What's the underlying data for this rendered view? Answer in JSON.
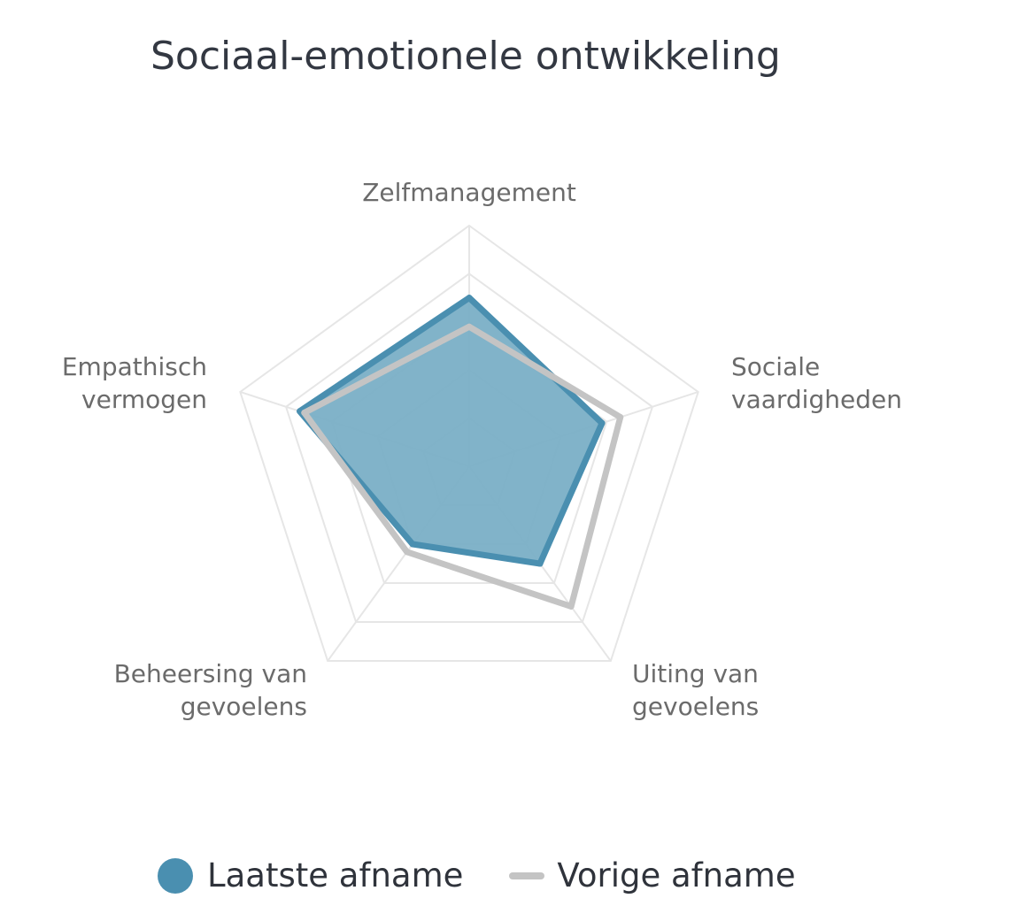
{
  "title": "Sociaal-emotionele ontwikkeling",
  "chart_data": {
    "type": "radar",
    "title": "Sociaal-emotionele ontwikkeling",
    "axes": [
      [
        "Zelfmanagement"
      ],
      [
        "Sociale",
        "vaardigheden"
      ],
      [
        "Uiting van",
        "gevoelens"
      ],
      [
        "Beheersing van",
        "gevoelens"
      ],
      [
        "Empathisch",
        "vermogen"
      ]
    ],
    "range": [
      0,
      5
    ],
    "grid_levels": 5,
    "grid": true,
    "legend_position": "bottom",
    "series": [
      {
        "name": "Laatste afname",
        "values": [
          3.5,
          2.9,
          2.5,
          2.0,
          3.7
        ],
        "color": "#4a8fb0",
        "fill": "#7aafc6",
        "style": "filled"
      },
      {
        "name": "Vorige afname",
        "values": [
          2.9,
          3.3,
          3.6,
          2.2,
          3.6
        ],
        "color": "#c4c4c4",
        "style": "line"
      }
    ]
  },
  "legend": {
    "items": [
      {
        "label": "Laatste afname",
        "marker": "dot",
        "color": "#4a8fb0"
      },
      {
        "label": "Vorige afname",
        "marker": "line",
        "color": "#c4c4c4"
      }
    ]
  }
}
